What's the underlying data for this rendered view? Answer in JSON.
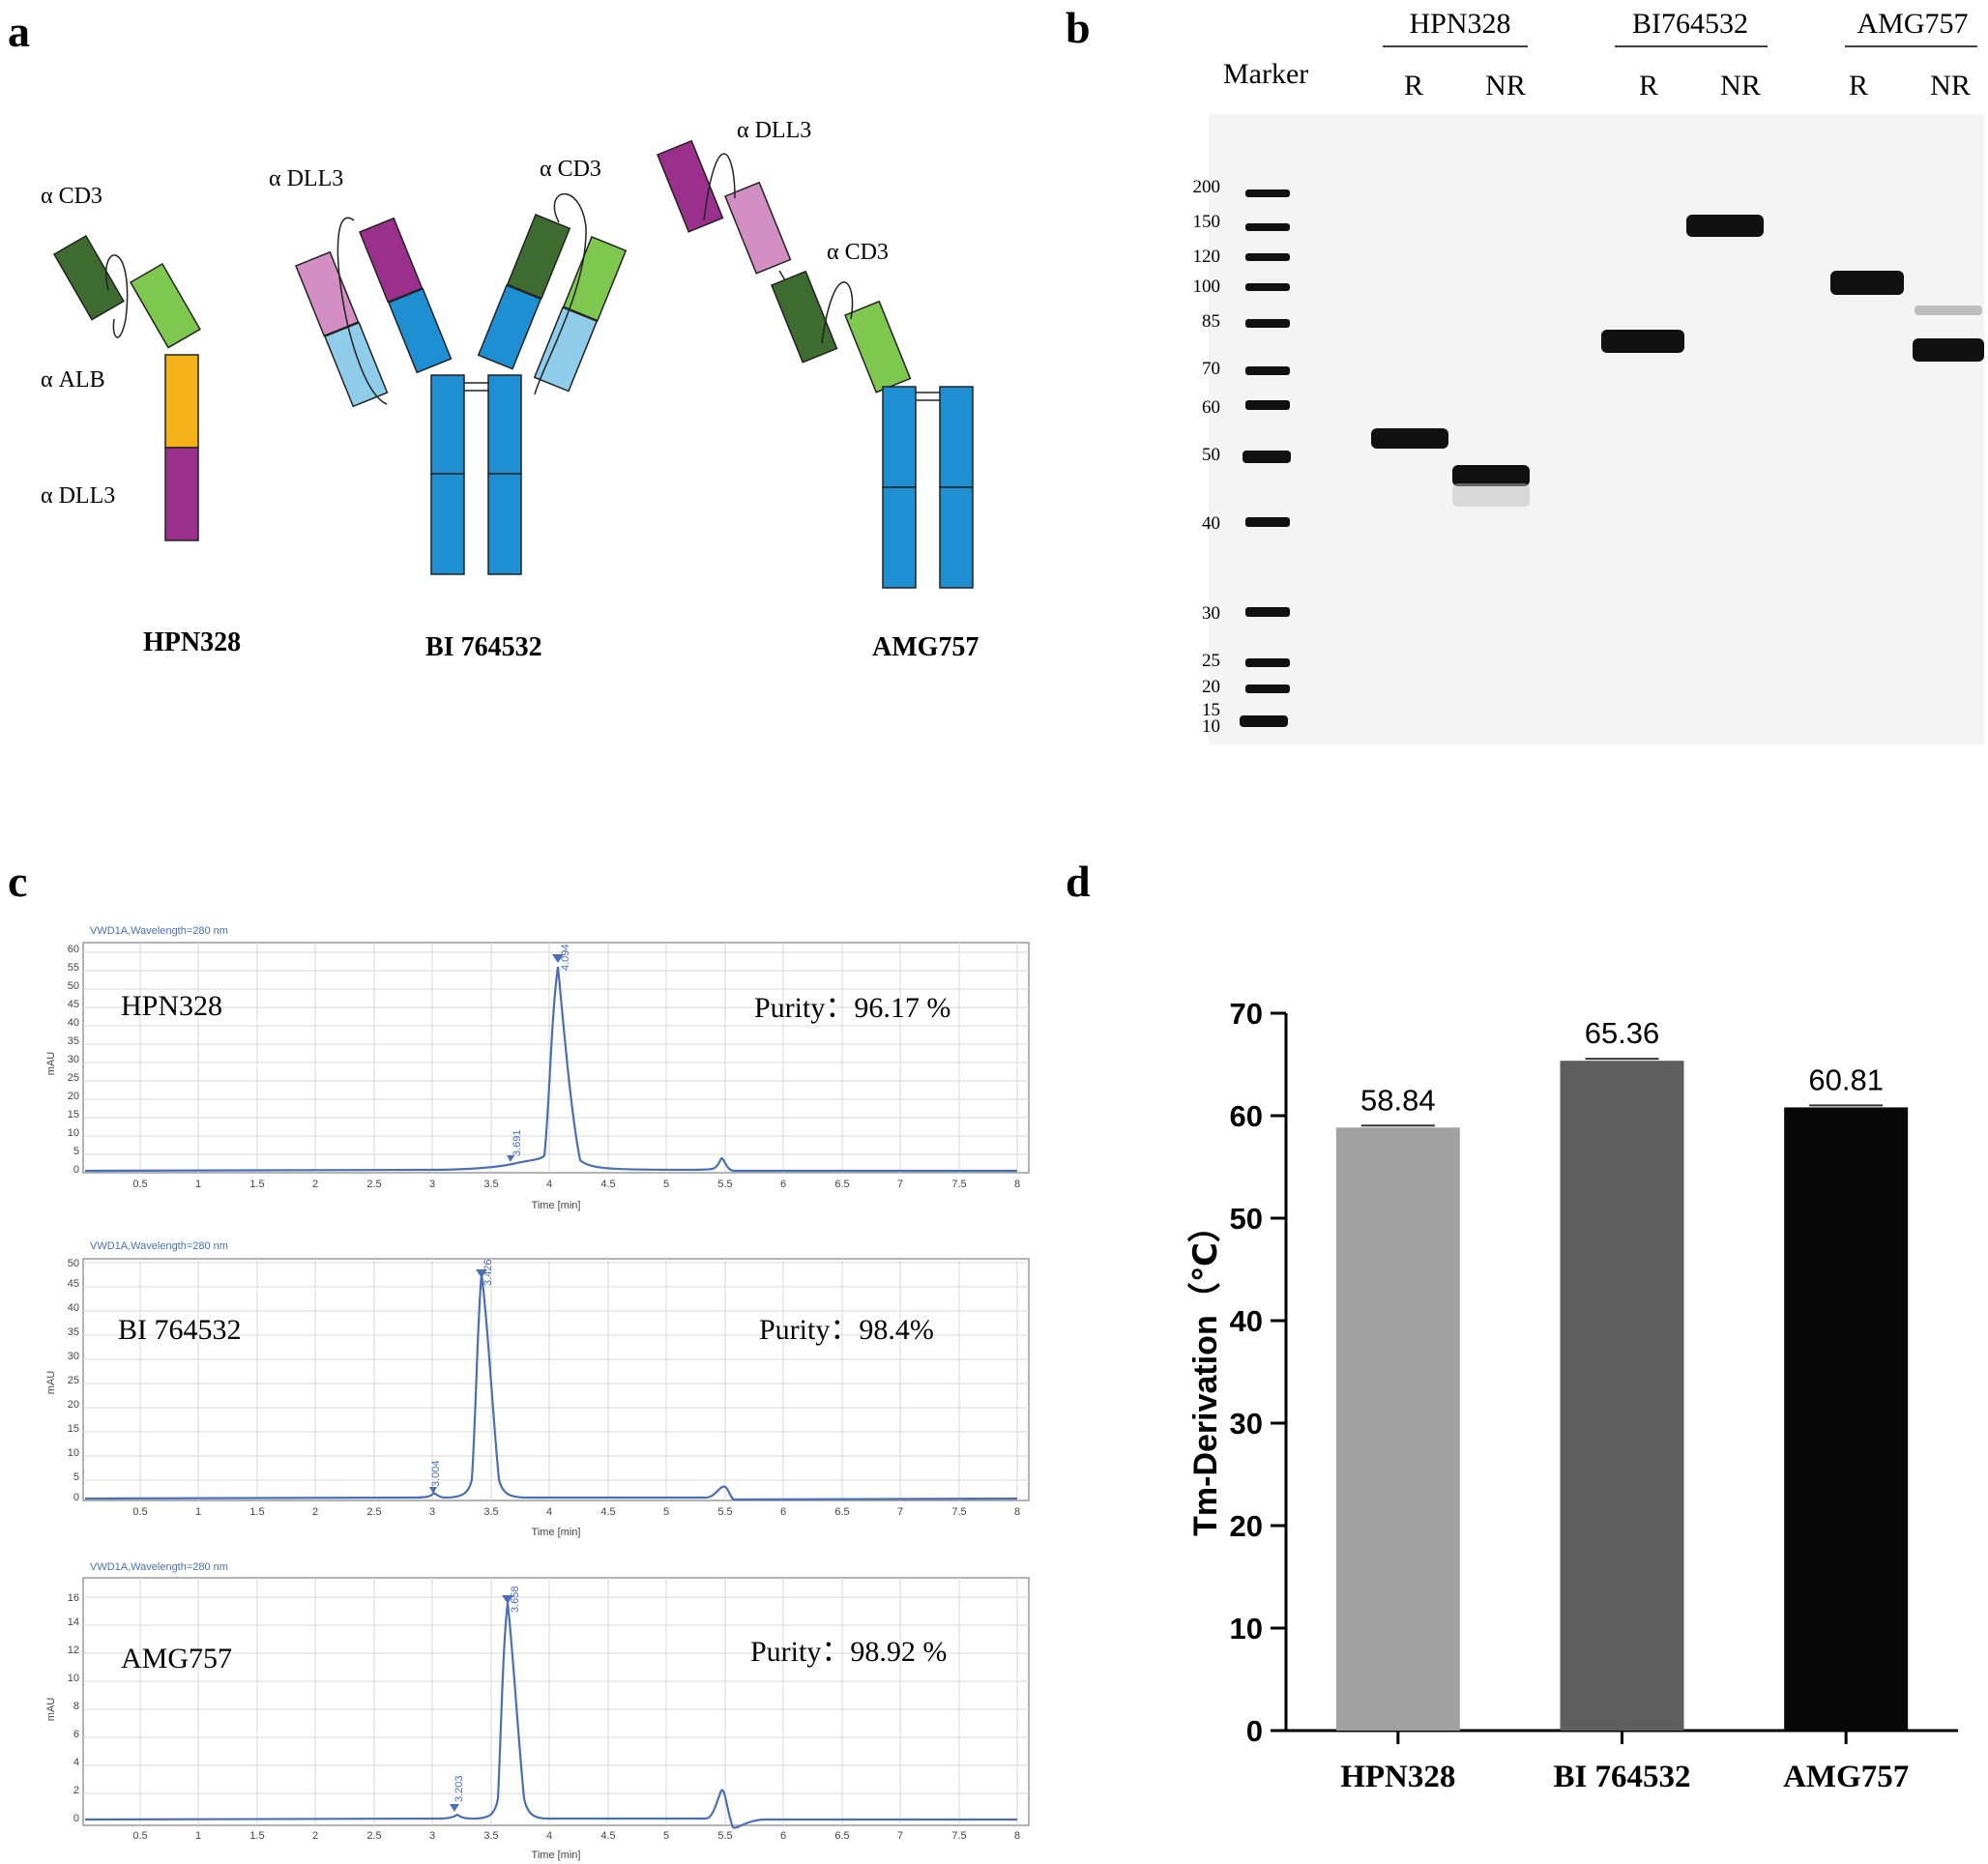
{
  "panels": {
    "a": {
      "label": "a",
      "constructs": [
        {
          "name": "HPN328",
          "domains": [
            "α CD3",
            "α ALB",
            "α DLL3"
          ]
        },
        {
          "name": "BI 764532",
          "domains": [
            "α DLL3",
            "α CD3"
          ]
        },
        {
          "name": "AMG757",
          "domains": [
            "α DLL3",
            "α CD3"
          ]
        }
      ],
      "colors": {
        "dark_green": "#3e6b2f",
        "light_green": "#7ec850",
        "orange": "#f5b21a",
        "purple": "#9b2f8c",
        "pink": "#d38fc3",
        "blue": "#1e8fd2",
        "light_blue": "#8fcdeb"
      }
    },
    "b": {
      "label": "b",
      "marker_label": "Marker",
      "groups": [
        {
          "name": "HPN328",
          "lanes": [
            "R",
            "NR"
          ]
        },
        {
          "name": "BI764532",
          "lanes": [
            "R",
            "NR"
          ]
        },
        {
          "name": "AMG757",
          "lanes": [
            "R",
            "NR"
          ]
        }
      ],
      "marker_sizes": [
        "200",
        "150",
        "120",
        "100",
        "85",
        "70",
        "60",
        "50",
        "40",
        "30",
        "25",
        "20",
        "15",
        "10"
      ]
    },
    "c": {
      "label": "c",
      "chromatograms": [
        {
          "sample": "HPN328",
          "purity": "Purity：96.17 %",
          "header": "VWD1A,Wavelength=280 nm",
          "ylabel": "mAU",
          "xlabel": "Time [min]",
          "yticks": [
            "0",
            "5",
            "10",
            "15",
            "20",
            "25",
            "30",
            "35",
            "40",
            "45",
            "50",
            "55",
            "60"
          ],
          "minor_peak": "3.691",
          "main_peak": "4.094"
        },
        {
          "sample": "BI 764532",
          "purity": "Purity：98.4%",
          "header": "VWD1A,Wavelength=280 nm",
          "ylabel": "mAU",
          "xlabel": "Time [min]",
          "yticks": [
            "0",
            "5",
            "10",
            "15",
            "20",
            "25",
            "30",
            "35",
            "40",
            "45",
            "50"
          ],
          "minor_peak": "3.004",
          "main_peak": "3.426"
        },
        {
          "sample": "AMG757",
          "purity": "Purity：98.92 %",
          "header": "VWD1A,Wavelength=280 nm",
          "ylabel": "mAU",
          "xlabel": "Time [min]",
          "yticks": [
            "0",
            "2",
            "4",
            "6",
            "8",
            "10",
            "12",
            "14",
            "16"
          ],
          "minor_peak": "3.203",
          "main_peak": "3.658"
        }
      ],
      "xticks": [
        "0.5",
        "1",
        "1.5",
        "2",
        "2.5",
        "3",
        "3.5",
        "4",
        "4.5",
        "5",
        "5.5",
        "6",
        "6.5",
        "7",
        "7.5",
        "8"
      ]
    },
    "d": {
      "label": "d"
    }
  },
  "chart_data": {
    "type": "bar",
    "title": "",
    "categories": [
      "HPN328",
      "BI 764532",
      "AMG757"
    ],
    "values": [
      58.84,
      65.36,
      60.81
    ],
    "value_labels": [
      "58.84",
      "65.36",
      "60.81"
    ],
    "colors": [
      "#a1a1a1",
      "#5e5e5e",
      "#080808"
    ],
    "xlabel": "",
    "ylabel": "Tm-Derivation（℃）",
    "ylim": [
      0,
      70
    ],
    "yticks": [
      "0",
      "10",
      "20",
      "30",
      "40",
      "50",
      "60",
      "70"
    ],
    "grid": false,
    "legend": "none"
  }
}
